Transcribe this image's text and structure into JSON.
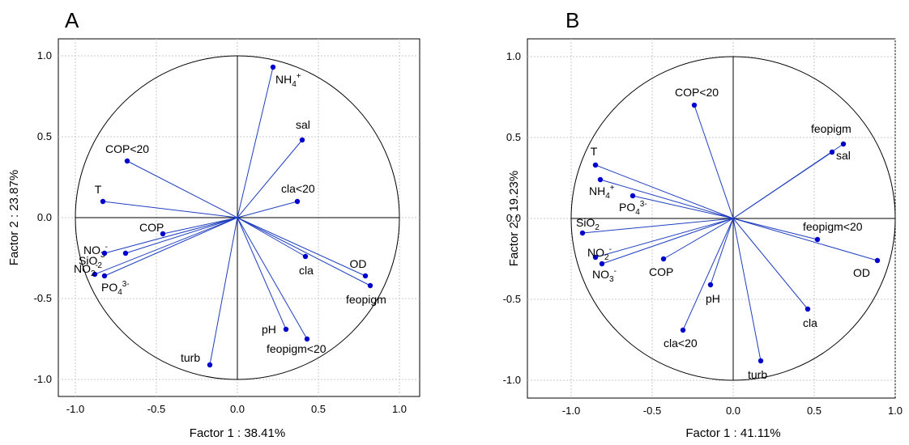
{
  "chart_data": [
    {
      "panel": "A",
      "type": "scatter",
      "xlabel": "Factor 1 : 38.41%",
      "ylabel": "Factor 2 : 23.87%",
      "xlim": [
        -1.0,
        1.0
      ],
      "ylim": [
        -1.0,
        1.0
      ],
      "xticks": [
        "-1.0",
        "-0.5",
        "0.0",
        "0.5",
        "1.0"
      ],
      "yticks": [
        "-1.0",
        "-0.5",
        "0.0",
        "0.5",
        "1.0"
      ],
      "grid": true,
      "unit_circle": true,
      "points": [
        {
          "label": "NH",
          "sub": "4",
          "sup": "+",
          "x": 0.22,
          "y": 0.93
        },
        {
          "label": "sal",
          "sub": "",
          "sup": "",
          "x": 0.4,
          "y": 0.48
        },
        {
          "label": "COP<20",
          "sub": "",
          "sup": "",
          "x": -0.68,
          "y": 0.35
        },
        {
          "label": "T",
          "sub": "",
          "sup": "",
          "x": -0.83,
          "y": 0.1
        },
        {
          "label": "cla<20",
          "sub": "",
          "sup": "",
          "x": 0.37,
          "y": 0.1
        },
        {
          "label": "COP",
          "sub": "",
          "sup": "",
          "x": -0.46,
          "y": -0.1
        },
        {
          "label": "NO",
          "sub": "3",
          "sup": "-",
          "x": -0.69,
          "y": -0.22
        },
        {
          "label": "SiO",
          "sub": "2",
          "sup": "",
          "x": -0.82,
          "y": -0.22
        },
        {
          "label": "NO",
          "sub": "2",
          "sup": "-",
          "x": -0.88,
          "y": -0.35
        },
        {
          "label": "PO",
          "sub": "4",
          "sup": "3-",
          "x": -0.82,
          "y": -0.36
        },
        {
          "label": "cla",
          "sub": "",
          "sup": "",
          "x": 0.42,
          "y": -0.24
        },
        {
          "label": "OD",
          "sub": "",
          "sup": "",
          "x": 0.79,
          "y": -0.36
        },
        {
          "label": "feopigm",
          "sub": "",
          "sup": "",
          "x": 0.82,
          "y": -0.42
        },
        {
          "label": "pH",
          "sub": "",
          "sup": "",
          "x": 0.3,
          "y": -0.69
        },
        {
          "label": "feopigm<20",
          "sub": "",
          "sup": "",
          "x": 0.43,
          "y": -0.75
        },
        {
          "label": "turb",
          "sub": "",
          "sup": "",
          "x": -0.17,
          "y": -0.91
        }
      ]
    },
    {
      "panel": "B",
      "type": "scatter",
      "xlabel": "Factor 1 : 41.11%",
      "ylabel": "Factor 2 : 19.23%",
      "xlim": [
        -1.0,
        1.0
      ],
      "ylim": [
        -1.0,
        1.0
      ],
      "xticks": [
        "-1.0",
        "-0.5",
        "0.0",
        "0.5",
        "1.0"
      ],
      "yticks": [
        "-1.0",
        "-0.5",
        "0.0",
        "0.5",
        "1.0"
      ],
      "grid": true,
      "unit_circle": true,
      "points": [
        {
          "label": "COP<20",
          "sub": "",
          "sup": "",
          "x": -0.24,
          "y": 0.7
        },
        {
          "label": "feopigm",
          "sub": "",
          "sup": "",
          "x": 0.68,
          "y": 0.46
        },
        {
          "label": "sal",
          "sub": "",
          "sup": "",
          "x": 0.61,
          "y": 0.41
        },
        {
          "label": "T",
          "sub": "",
          "sup": "",
          "x": -0.85,
          "y": 0.33
        },
        {
          "label": "NH",
          "sub": "4",
          "sup": "+",
          "x": -0.82,
          "y": 0.24
        },
        {
          "label": "PO",
          "sub": "4",
          "sup": "3-",
          "x": -0.62,
          "y": 0.14
        },
        {
          "label": "SiO",
          "sub": "2",
          "sup": "",
          "x": -0.93,
          "y": -0.09
        },
        {
          "label": "feopigm<20",
          "sub": "",
          "sup": "",
          "x": 0.52,
          "y": -0.13
        },
        {
          "label": "OD",
          "sub": "",
          "sup": "",
          "x": 0.89,
          "y": -0.26
        },
        {
          "label": "NO",
          "sub": "2",
          "sup": "-",
          "x": -0.85,
          "y": -0.24
        },
        {
          "label": "NO",
          "sub": "3",
          "sup": "-",
          "x": -0.81,
          "y": -0.28
        },
        {
          "label": "COP",
          "sub": "",
          "sup": "",
          "x": -0.43,
          "y": -0.25
        },
        {
          "label": "pH",
          "sub": "",
          "sup": "",
          "x": -0.14,
          "y": -0.41
        },
        {
          "label": "cla",
          "sub": "",
          "sup": "",
          "x": 0.46,
          "y": -0.56
        },
        {
          "label": "cla<20",
          "sub": "",
          "sup": "",
          "x": -0.31,
          "y": -0.69
        },
        {
          "label": "turb",
          "sub": "",
          "sup": "",
          "x": 0.17,
          "y": -0.88
        }
      ]
    }
  ]
}
